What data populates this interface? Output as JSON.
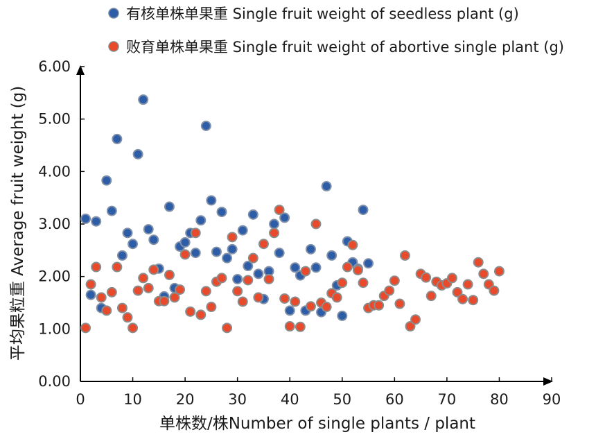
{
  "chart_data": {
    "type": "scatter",
    "xlabel": "单株数/株Number of single plants / plant",
    "ylabel": "平均果粒重 Average fruit weight (g)",
    "xlim": [
      0,
      90
    ],
    "ylim": [
      0,
      6
    ],
    "x_ticks": [
      "0",
      "10",
      "20",
      "30",
      "40",
      "50",
      "60",
      "70",
      "80",
      "90"
    ],
    "y_ticks": [
      "0.00",
      "1.00",
      "2.00",
      "3.00",
      "4.00",
      "5.00",
      "6.00"
    ],
    "grid": false,
    "legend_position": "top",
    "series": [
      {
        "name": "有核单株单果重 Single fruit weight of seedless plant (g)",
        "color": "#2e5da8",
        "points": [
          [
            1,
            3.1
          ],
          [
            2,
            1.65
          ],
          [
            3,
            3.05
          ],
          [
            4,
            1.4
          ],
          [
            5,
            3.83
          ],
          [
            6,
            3.25
          ],
          [
            7,
            4.62
          ],
          [
            8,
            2.4
          ],
          [
            9,
            2.83
          ],
          [
            10,
            2.62
          ],
          [
            11,
            4.33
          ],
          [
            12,
            5.37
          ],
          [
            13,
            2.9
          ],
          [
            14,
            2.7
          ],
          [
            15,
            2.15
          ],
          [
            16,
            1.62
          ],
          [
            17,
            3.33
          ],
          [
            18,
            1.78
          ],
          [
            19,
            2.57
          ],
          [
            20,
            2.65
          ],
          [
            21,
            2.83
          ],
          [
            22,
            2.45
          ],
          [
            23,
            3.07
          ],
          [
            24,
            4.87
          ],
          [
            25,
            3.45
          ],
          [
            26,
            2.47
          ],
          [
            27,
            3.23
          ],
          [
            28,
            2.35
          ],
          [
            29,
            2.52
          ],
          [
            30,
            1.95
          ],
          [
            31,
            2.88
          ],
          [
            32,
            2.2
          ],
          [
            33,
            3.18
          ],
          [
            34,
            2.05
          ],
          [
            35,
            1.57
          ],
          [
            36,
            2.1
          ],
          [
            37,
            3.0
          ],
          [
            38,
            2.45
          ],
          [
            39,
            3.12
          ],
          [
            40,
            1.35
          ],
          [
            41,
            2.17
          ],
          [
            42,
            2.02
          ],
          [
            43,
            1.35
          ],
          [
            44,
            2.52
          ],
          [
            45,
            2.17
          ],
          [
            46,
            1.32
          ],
          [
            47,
            3.72
          ],
          [
            48,
            2.4
          ],
          [
            49,
            1.83
          ],
          [
            50,
            1.25
          ],
          [
            51,
            2.67
          ],
          [
            52,
            2.27
          ],
          [
            53,
            2.15
          ],
          [
            54,
            3.27
          ],
          [
            55,
            2.25
          ]
        ]
      },
      {
        "name": "败育单株单果重 Single fruit weight of abortive single plant (g)",
        "color": "#e84a2b",
        "points": [
          [
            1,
            1.02
          ],
          [
            2,
            1.85
          ],
          [
            3,
            2.18
          ],
          [
            4,
            1.6
          ],
          [
            5,
            1.35
          ],
          [
            6,
            1.7
          ],
          [
            7,
            2.18
          ],
          [
            8,
            1.4
          ],
          [
            9,
            1.22
          ],
          [
            10,
            1.02
          ],
          [
            11,
            1.73
          ],
          [
            12,
            1.97
          ],
          [
            13,
            1.78
          ],
          [
            14,
            2.13
          ],
          [
            15,
            1.53
          ],
          [
            16,
            1.53
          ],
          [
            17,
            2.03
          ],
          [
            18,
            1.6
          ],
          [
            19,
            1.75
          ],
          [
            20,
            2.42
          ],
          [
            21,
            1.33
          ],
          [
            22,
            2.83
          ],
          [
            23,
            1.27
          ],
          [
            24,
            1.72
          ],
          [
            25,
            1.42
          ],
          [
            26,
            1.9
          ],
          [
            27,
            1.97
          ],
          [
            28,
            1.02
          ],
          [
            29,
            2.75
          ],
          [
            30,
            1.72
          ],
          [
            31,
            1.52
          ],
          [
            32,
            1.93
          ],
          [
            33,
            2.35
          ],
          [
            34,
            1.6
          ],
          [
            35,
            2.62
          ],
          [
            36,
            1.95
          ],
          [
            37,
            2.83
          ],
          [
            38,
            3.27
          ],
          [
            39,
            1.58
          ],
          [
            40,
            1.05
          ],
          [
            41,
            1.52
          ],
          [
            42,
            1.04
          ],
          [
            43,
            2.1
          ],
          [
            44,
            1.43
          ],
          [
            45,
            3.0
          ],
          [
            46,
            1.5
          ],
          [
            47,
            1.42
          ],
          [
            48,
            1.68
          ],
          [
            49,
            1.6
          ],
          [
            50,
            1.88
          ],
          [
            51,
            2.18
          ],
          [
            52,
            2.6
          ],
          [
            53,
            2.12
          ],
          [
            54,
            1.88
          ],
          [
            55,
            1.4
          ],
          [
            56,
            1.45
          ],
          [
            57,
            1.45
          ],
          [
            58,
            1.63
          ],
          [
            59,
            1.73
          ],
          [
            60,
            1.92
          ],
          [
            61,
            1.48
          ],
          [
            62,
            2.4
          ],
          [
            63,
            1.05
          ],
          [
            64,
            1.18
          ],
          [
            65,
            2.05
          ],
          [
            66,
            1.98
          ],
          [
            67,
            1.63
          ],
          [
            68,
            1.9
          ],
          [
            69,
            1.83
          ],
          [
            70,
            1.87
          ],
          [
            71,
            1.97
          ],
          [
            72,
            1.7
          ],
          [
            73,
            1.57
          ],
          [
            74,
            1.85
          ],
          [
            75,
            1.55
          ],
          [
            76,
            2.27
          ],
          [
            77,
            2.05
          ],
          [
            78,
            1.85
          ],
          [
            79,
            1.73
          ],
          [
            80,
            2.1
          ]
        ]
      }
    ]
  }
}
